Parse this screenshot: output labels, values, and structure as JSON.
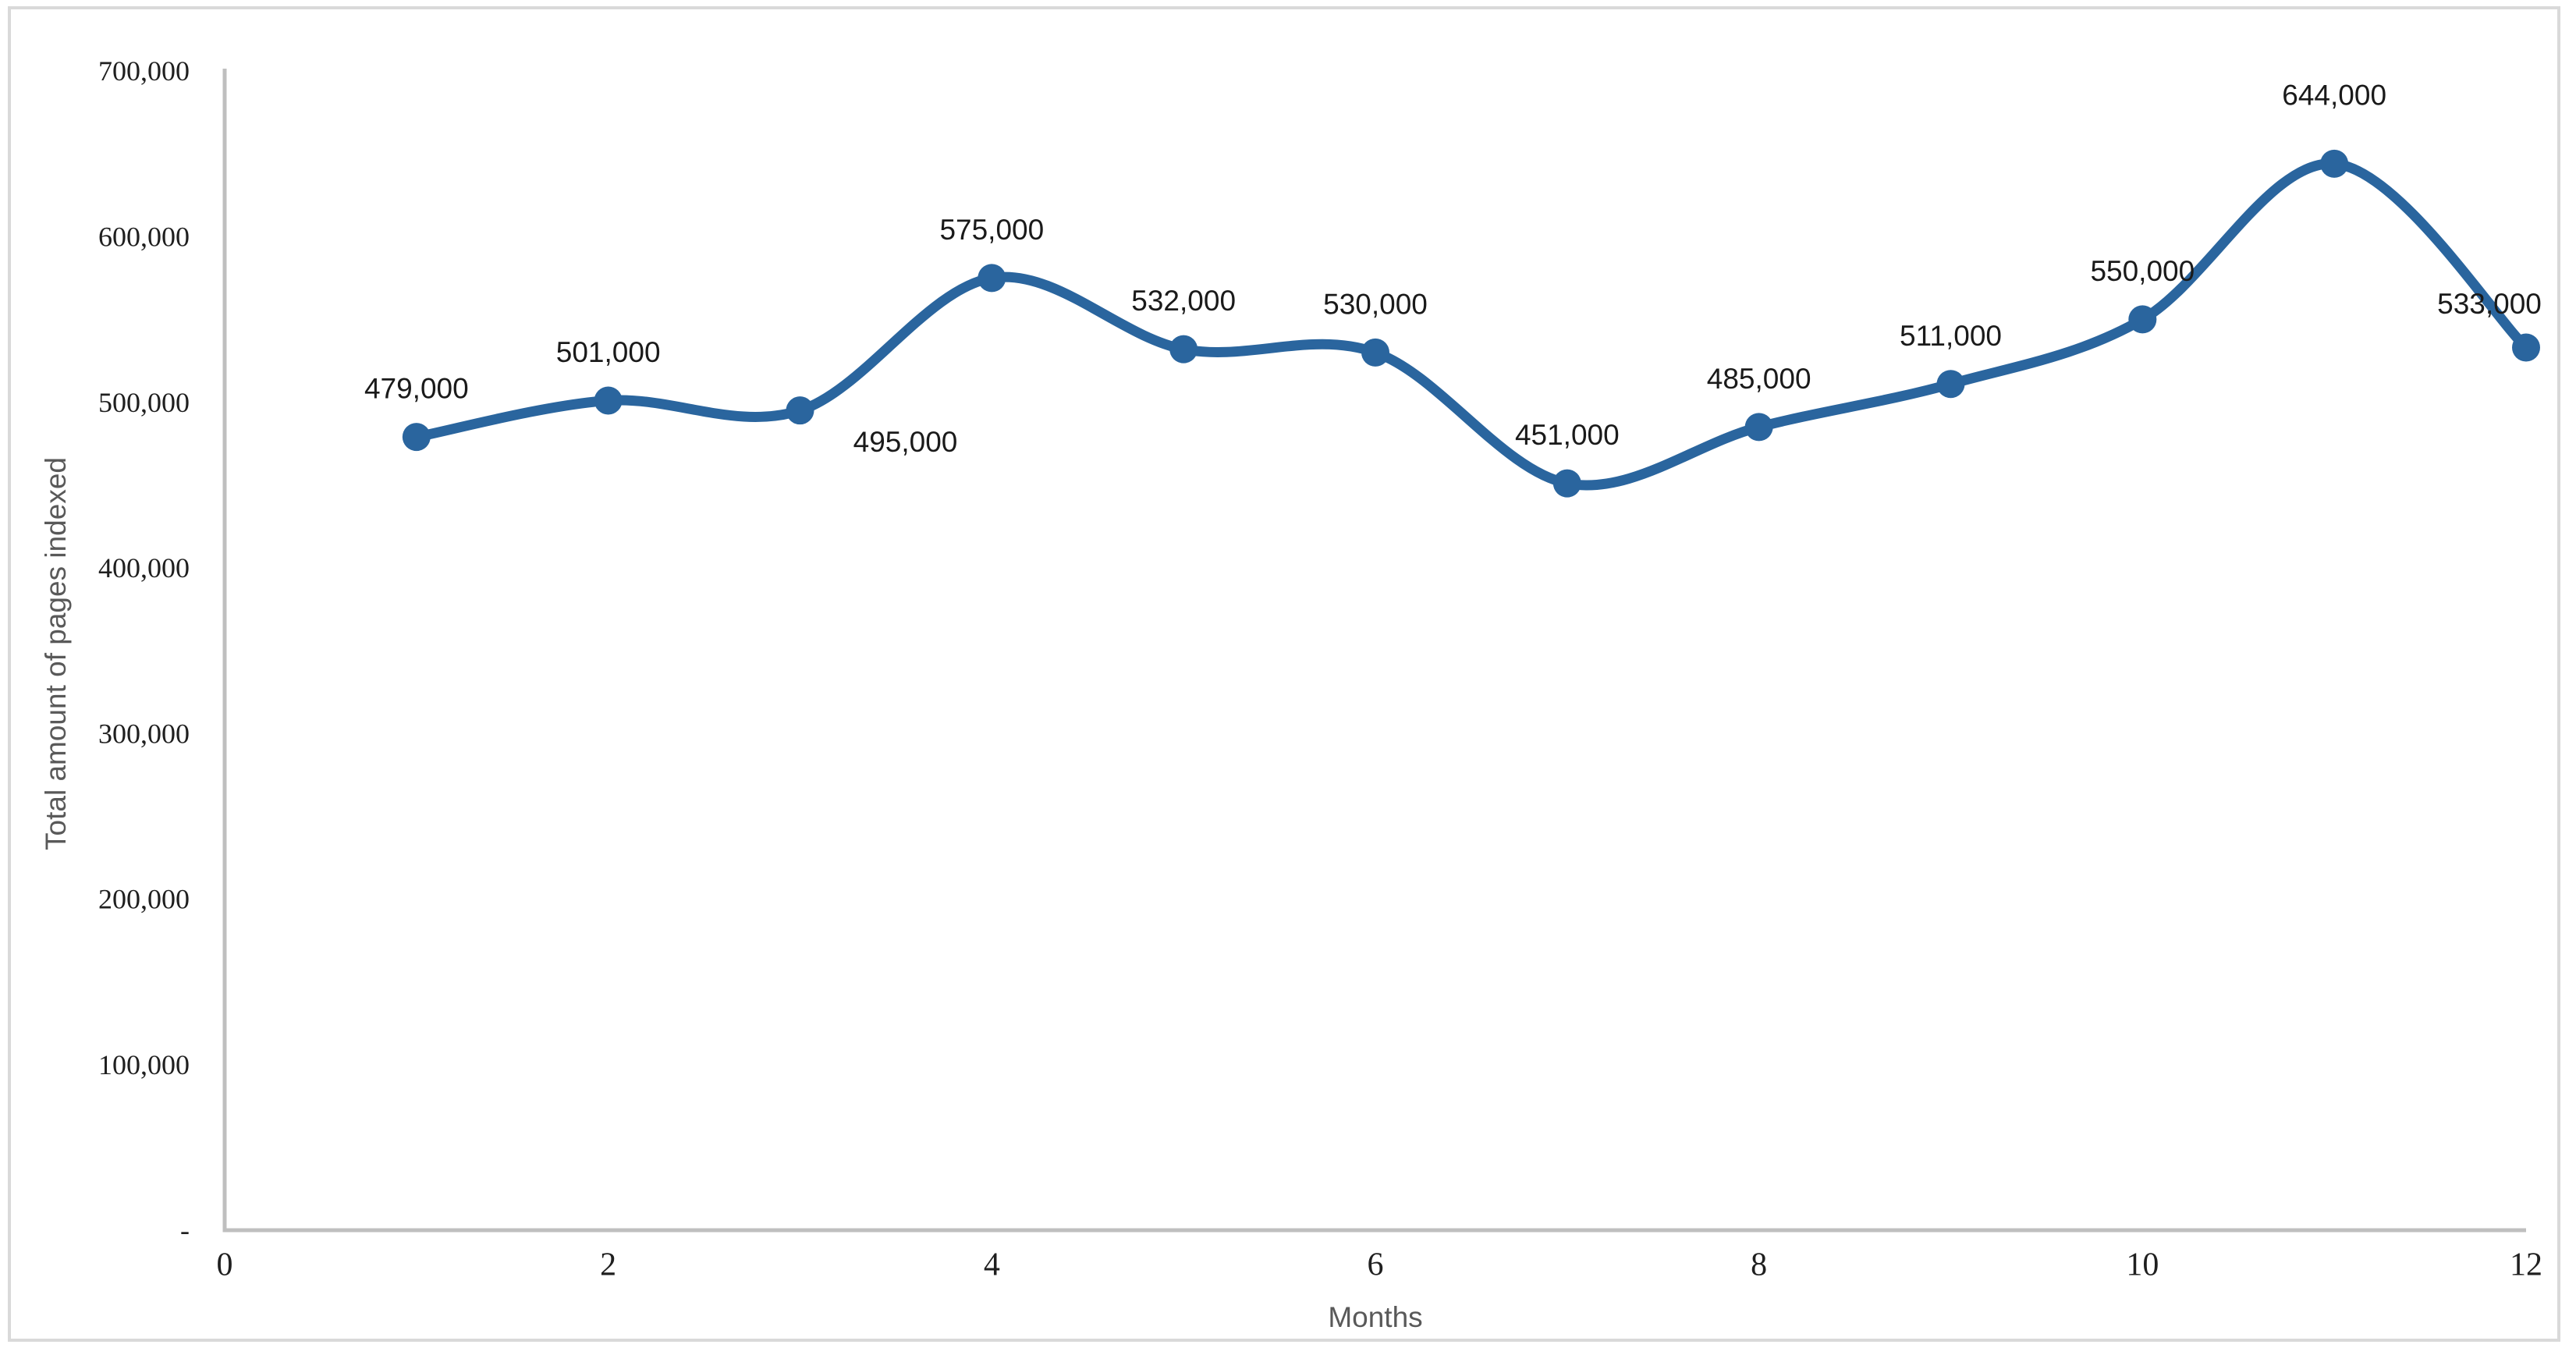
{
  "chart_data": {
    "type": "line",
    "title": "",
    "xlabel": "Months",
    "ylabel": "Total amount of pages indexed",
    "x": [
      1,
      2,
      3,
      4,
      5,
      6,
      7,
      8,
      9,
      10,
      11,
      12
    ],
    "values": [
      479000,
      501000,
      495000,
      575000,
      532000,
      530000,
      451000,
      485000,
      511000,
      550000,
      644000,
      533000
    ],
    "point_labels": [
      "479,000",
      "501,000",
      "495,000",
      "575,000",
      "532,000",
      "530,000",
      "451,000",
      "485,000",
      "511,000",
      "550,000",
      "644,000",
      "533,000"
    ],
    "label_placements": [
      "above",
      "above",
      "below-right",
      "above",
      "above",
      "above",
      "above",
      "above",
      "above",
      "above",
      "above-far",
      "above-left"
    ],
    "x_ticks": [
      {
        "value": 0,
        "label": "0"
      },
      {
        "value": 2,
        "label": "2"
      },
      {
        "value": 4,
        "label": "4"
      },
      {
        "value": 6,
        "label": "6"
      },
      {
        "value": 8,
        "label": "8"
      },
      {
        "value": 10,
        "label": "10"
      },
      {
        "value": 12,
        "label": "12"
      }
    ],
    "y_ticks": [
      {
        "value": 700000,
        "label": "700,000"
      },
      {
        "value": 600000,
        "label": "600,000"
      },
      {
        "value": 500000,
        "label": "500,000"
      },
      {
        "value": 400000,
        "label": "400,000"
      },
      {
        "value": 300000,
        "label": "300,000"
      },
      {
        "value": 200000,
        "label": "200,000"
      },
      {
        "value": 100000,
        "label": "100,000"
      },
      {
        "value": 0,
        "label": "-"
      }
    ],
    "xlim": [
      0,
      12
    ],
    "ylim": [
      0,
      700000
    ],
    "grid": false,
    "legend": false,
    "smooth": true,
    "marker": "circle"
  },
  "style": {
    "line_color": "#2a659e",
    "marker_color": "#2a659e",
    "axis_line_color": "#bfbfbf",
    "frame_color": "#d9d9d9",
    "tick_label_color": "#1f1f1f",
    "data_label_color": "#1a1a1a",
    "axis_title_color": "#595959",
    "background": "#ffffff"
  }
}
